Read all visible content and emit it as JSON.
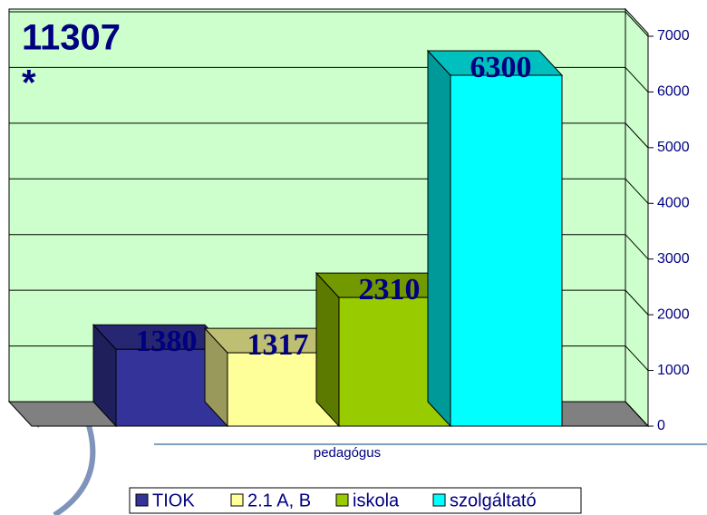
{
  "chart_data": {
    "type": "bar3d",
    "annotations": [
      "11307",
      "*"
    ],
    "categories": [
      "pedagógus"
    ],
    "series": [
      {
        "name": "TIOK",
        "color": "#333399",
        "values": [
          1380
        ]
      },
      {
        "name": "2.1 A, B",
        "color": "#ffff99",
        "values": [
          1317
        ]
      },
      {
        "name": "iskola",
        "color": "#99cc00",
        "values": [
          2310
        ]
      },
      {
        "name": "szolgáltató",
        "color": "#00ffff",
        "values": [
          6300
        ]
      }
    ],
    "ylim": [
      0,
      7000
    ],
    "yticks": [
      0,
      1000,
      2000,
      3000,
      4000,
      5000,
      6000,
      7000
    ],
    "grid": true,
    "legend": "bottom"
  }
}
